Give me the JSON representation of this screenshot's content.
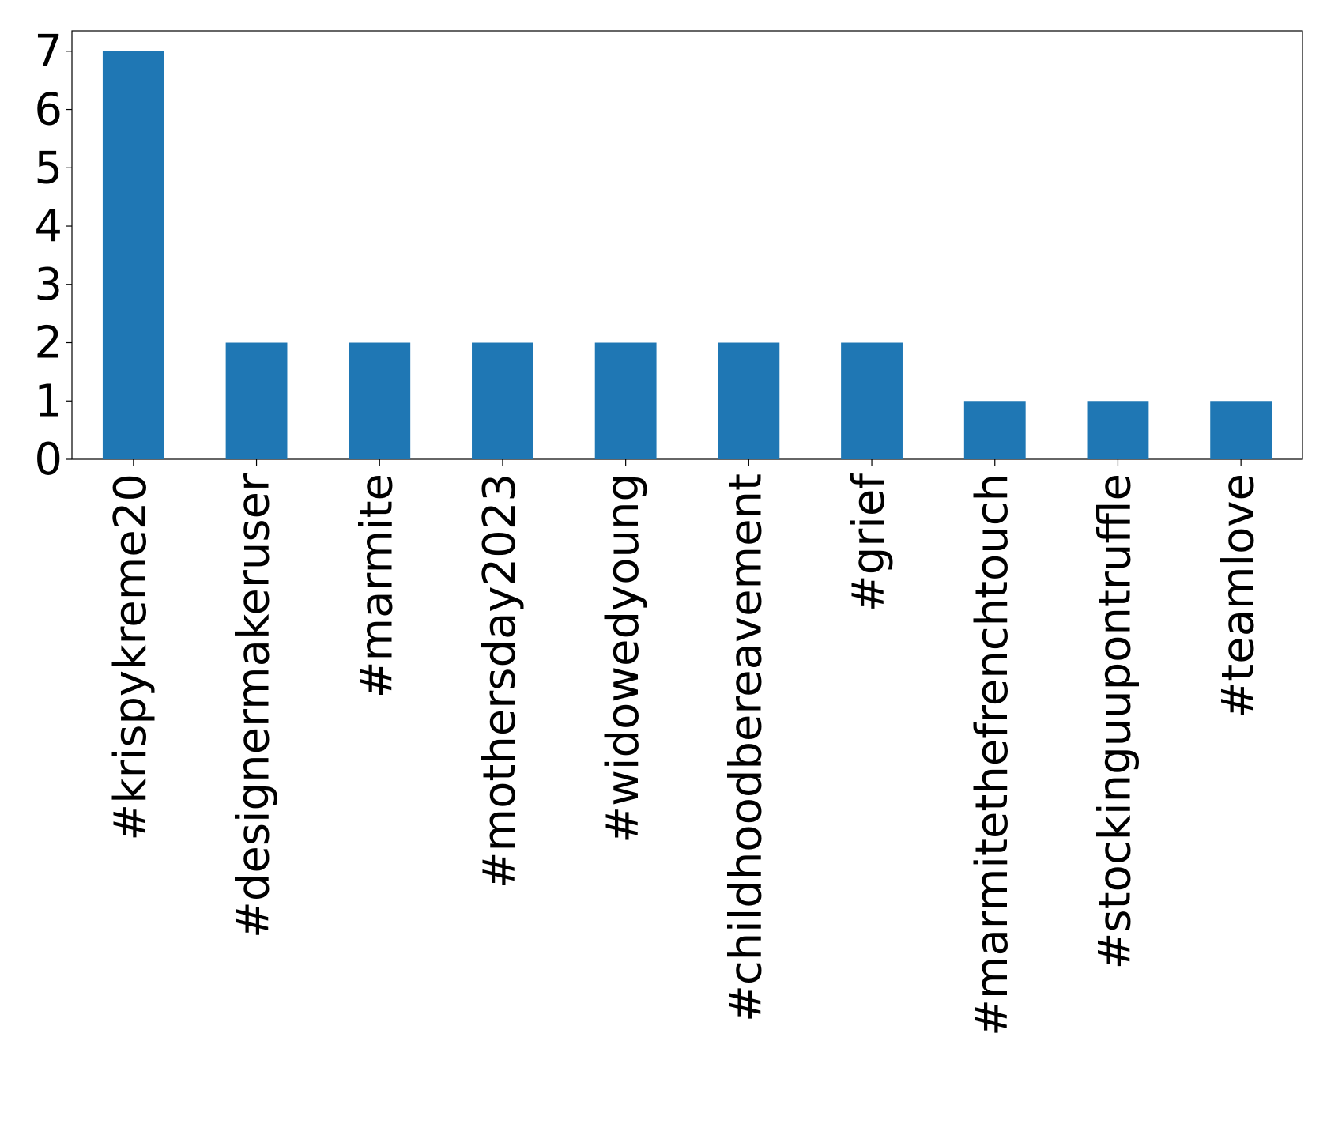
{
  "chart_data": {
    "type": "bar",
    "categories": [
      "#krispykreme20",
      "#designermakeruser",
      "#marmite",
      "#mothersday2023",
      "#widowedyoung",
      "#childhoodbereavement",
      "#grief",
      "#marmitethefrenchtouch",
      "#stockinguupontruffle",
      "#teamlove"
    ],
    "values": [
      7,
      2,
      2,
      2,
      2,
      2,
      2,
      1,
      1,
      1
    ],
    "color": "#1f77b4",
    "ylim": [
      0,
      7.35
    ],
    "yticks": [
      0,
      1,
      2,
      3,
      4,
      5,
      6,
      7
    ],
    "grid": false
  }
}
